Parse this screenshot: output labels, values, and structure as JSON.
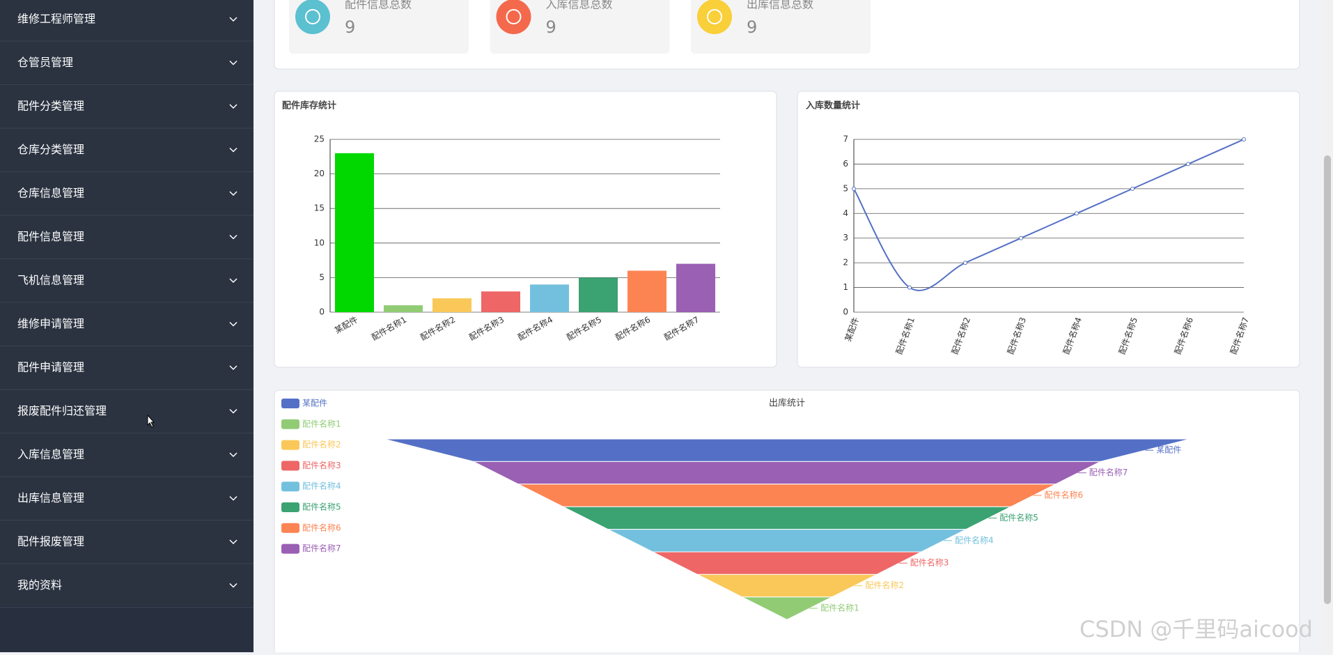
{
  "sidebar": {
    "menu": [
      "维修工程师管理",
      "仓管员管理",
      "配件分类管理",
      "仓库分类管理",
      "仓库信息管理",
      "配件信息管理",
      "飞机信息管理",
      "维修申请管理",
      "配件申请管理",
      "报废配件归还管理",
      "入库信息管理",
      "出库信息管理",
      "配件报废管理",
      "我的资料"
    ]
  },
  "cards": [
    {
      "title": "配件信息总数",
      "value": 9,
      "color": "#5bc0d0"
    },
    {
      "title": "入库信息总数",
      "value": 9,
      "color": "#f4694c"
    },
    {
      "title": "出库信息总数",
      "value": 9,
      "color": "#f9cf3a"
    }
  ],
  "chart_data": [
    {
      "type": "bar",
      "title": "配件库存统计",
      "categories": [
        "某配件",
        "配件名称1",
        "配件名称2",
        "配件名称3",
        "配件名称4",
        "配件名称5",
        "配件名称6",
        "配件名称7"
      ],
      "values": [
        23,
        1,
        2,
        3,
        4,
        5,
        6,
        7
      ],
      "colors": [
        "#00d800",
        "#91cc75",
        "#fac858",
        "#ee6666",
        "#73c0de",
        "#3ba272",
        "#fc8452",
        "#9a60b4"
      ],
      "ylim": [
        0,
        25
      ],
      "yticks": [
        0,
        5,
        10,
        15,
        20,
        25
      ],
      "grid": true
    },
    {
      "type": "line",
      "title": "入库数量统计",
      "categories": [
        "某配件",
        "配件名称1",
        "配件名称2",
        "配件名称3",
        "配件名称4",
        "配件名称5",
        "配件名称6",
        "配件名称7"
      ],
      "values": [
        5,
        1,
        2,
        3,
        4,
        5,
        6,
        7
      ],
      "color": "#5470c6",
      "ylim": [
        0,
        7
      ],
      "yticks": [
        0,
        1,
        2,
        3,
        4,
        5,
        6,
        7
      ],
      "grid": true
    },
    {
      "type": "funnel",
      "title": "出库统计",
      "categories": [
        "某配件",
        "配件名称7",
        "配件名称6",
        "配件名称5",
        "配件名称4",
        "配件名称3",
        "配件名称2",
        "配件名称1"
      ],
      "values": [
        9,
        7,
        6,
        5,
        4,
        3,
        2,
        1
      ],
      "colors": [
        "#5470c6",
        "#9a60b4",
        "#fc8452",
        "#3ba272",
        "#73c0de",
        "#ee6666",
        "#fac858",
        "#91cc75"
      ],
      "legend": "top-left"
    }
  ]
}
